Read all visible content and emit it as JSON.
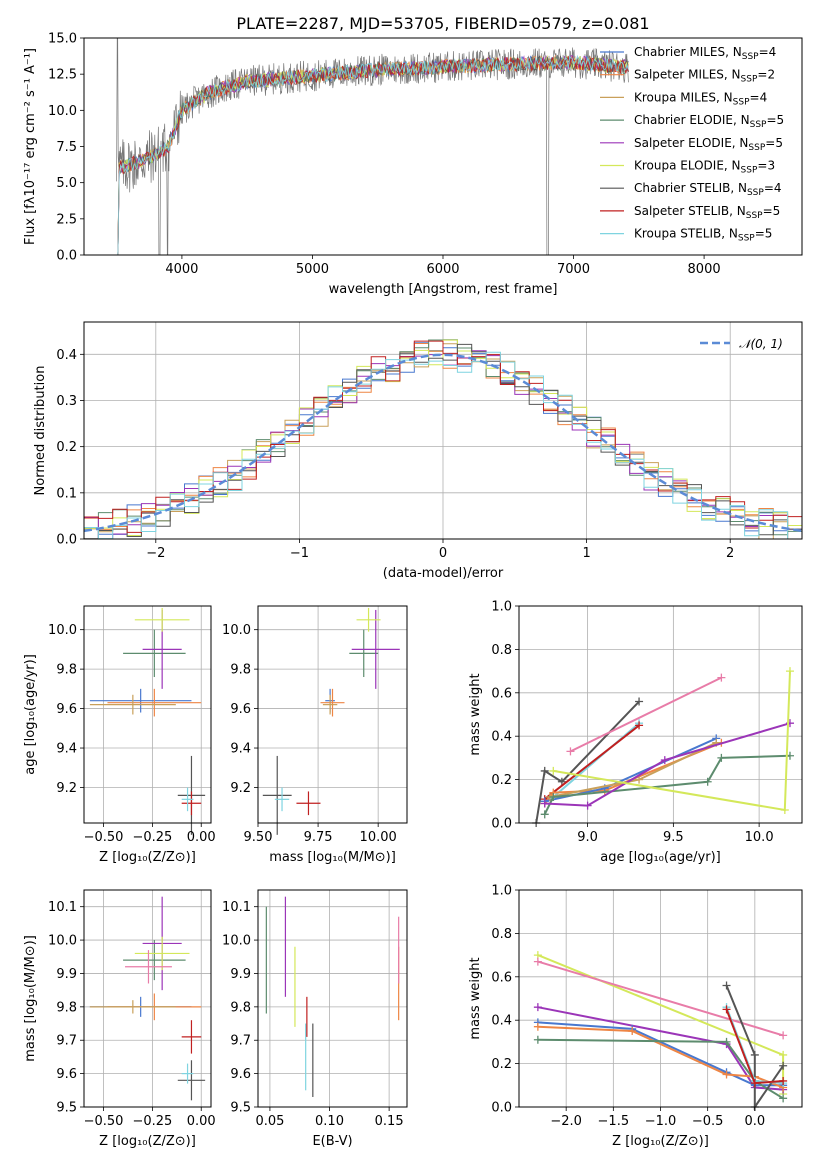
{
  "colors": {
    "Chabrier MILES": "#4878cf",
    "Salpeter MILES": "#ee8544",
    "Kroupa MILES": "#c9a05a",
    "Chabrier ELODIE": "#5d8c6e",
    "Salpeter ELODIE": "#9b35b8",
    "Kroupa ELODIE": "#d4e85a",
    "Chabrier STELIB": "#555555",
    "Salpeter STELIB": "#c02020",
    "Kroupa STELIB": "#7fd4e0",
    "gaussian": "#5b8bd6"
  },
  "chart_data": [
    {
      "id": "spectrum",
      "type": "line",
      "title": "PLATE=2287, MJD=53705, FIBERID=0579, z=0.081",
      "xlabel": "wavelength [Angstrom, rest frame]",
      "ylabel": "Flux [fλ10⁻¹⁷ erg cm⁻² s⁻¹ A⁻¹]",
      "xlim": [
        3250,
        8750
      ],
      "ylim": [
        0,
        15
      ],
      "xticks": [
        "4000",
        "5000",
        "6000",
        "7000",
        "8000"
      ],
      "yticks": [
        "0.0",
        "2.5",
        "5.0",
        "7.5",
        "10.0",
        "12.5",
        "15.0"
      ],
      "legend": [
        {
          "name": "Chabrier MILES",
          "nssp": "4"
        },
        {
          "name": "Salpeter MILES",
          "nssp": "2"
        },
        {
          "name": "Kroupa MILES",
          "nssp": "4"
        },
        {
          "name": "Chabrier ELODIE",
          "nssp": "5"
        },
        {
          "name": "Salpeter ELODIE",
          "nssp": "5"
        },
        {
          "name": "Kroupa ELODIE",
          "nssp": "3"
        },
        {
          "name": "Chabrier STELIB",
          "nssp": "4"
        },
        {
          "name": "Salpeter STELIB",
          "nssp": "5"
        },
        {
          "name": "Kroupa STELIB",
          "nssp": "5"
        }
      ],
      "continuum": {
        "x": [
          3500,
          3700,
          3900,
          4000,
          4200,
          4500,
          5000,
          5500,
          6000,
          6500,
          7000,
          7400
        ],
        "y": [
          6.0,
          6.5,
          7.5,
          10.0,
          11.2,
          12.0,
          12.4,
          12.8,
          13.0,
          13.2,
          13.3,
          13.0
        ]
      },
      "drops": [
        3500,
        3820,
        3890,
        6810,
        7420
      ]
    },
    {
      "id": "residuals",
      "type": "bar",
      "xlabel": "(data-model)/error",
      "ylabel": "Normed distribution",
      "xlim": [
        -2.5,
        2.5
      ],
      "ylim": [
        0,
        0.47
      ],
      "xticks": [
        "−2",
        "−1",
        "0",
        "1",
        "2"
      ],
      "yticks": [
        "0.0",
        "0.1",
        "0.2",
        "0.3",
        "0.4"
      ],
      "legend_label": "𝒩(0, 1)",
      "gaussian": {
        "mu": 0,
        "sigma": 1
      }
    },
    {
      "id": "age-Z",
      "type": "scatter",
      "xlabel": "Z [log₁₀(Z/Z⊙)]",
      "ylabel": "age  [log₁₀(age/yr)]",
      "xlim": [
        -0.6,
        0.05
      ],
      "ylim": [
        9.02,
        10.12
      ],
      "xticks": [
        "−0.50",
        "−0.25",
        "0.00"
      ],
      "xtick_values": [
        -0.5,
        -0.25,
        0
      ],
      "yticks": [
        "9.2",
        "9.4",
        "9.6",
        "9.8",
        "10.0"
      ],
      "ytick_values": [
        9.2,
        9.4,
        9.6,
        9.8,
        10.0
      ],
      "points": [
        {
          "s": "Chabrier MILES",
          "x": -0.31,
          "y": 9.64,
          "ex": 0.26,
          "ey": 0.06
        },
        {
          "s": "Salpeter MILES",
          "x": -0.24,
          "y": 9.63,
          "ex": 0.24,
          "ey": 0.07
        },
        {
          "s": "Kroupa MILES",
          "x": -0.35,
          "y": 9.62,
          "ex": 0.22,
          "ey": 0.05
        },
        {
          "s": "Chabrier ELODIE",
          "x": -0.24,
          "y": 9.88,
          "ex": 0.16,
          "ey": 0.12
        },
        {
          "s": "Salpeter ELODIE",
          "x": -0.2,
          "y": 9.9,
          "ex": 0.1,
          "ey": 0.2
        },
        {
          "s": "Kroupa ELODIE",
          "x": -0.2,
          "y": 10.05,
          "ex": 0.14,
          "ey": 0.06
        },
        {
          "s": "Chabrier STELIB",
          "x": -0.05,
          "y": 9.16,
          "ex": 0.07,
          "ey": 0.2
        },
        {
          "s": "Salpeter STELIB",
          "x": -0.05,
          "y": 9.12,
          "ex": 0.05,
          "ey": 0.06
        },
        {
          "s": "Kroupa STELIB",
          "x": -0.07,
          "y": 9.14,
          "ex": 0.03,
          "ey": 0.06
        }
      ]
    },
    {
      "id": "age-mass",
      "type": "scatter",
      "xlabel": "mass [log₁₀(M/M⊙)]",
      "ylabel": "",
      "xlim": [
        9.5,
        10.12
      ],
      "ylim": [
        9.02,
        10.12
      ],
      "xticks": [
        "9.50",
        "9.75",
        "10.00"
      ],
      "xtick_values": [
        9.5,
        9.75,
        10.0
      ],
      "yticks": [
        "9.2",
        "9.4",
        "9.6",
        "9.8",
        "10.0"
      ],
      "ytick_values": [
        9.2,
        9.4,
        9.6,
        9.8,
        10.0
      ],
      "points": [
        {
          "s": "Chabrier MILES",
          "x": 9.8,
          "y": 9.64,
          "ex": 0.02,
          "ey": 0.06
        },
        {
          "s": "Salpeter MILES",
          "x": 9.81,
          "y": 9.63,
          "ex": 0.05,
          "ey": 0.07
        },
        {
          "s": "Kroupa MILES",
          "x": 9.8,
          "y": 9.62,
          "ex": 0.03,
          "ey": 0.05
        },
        {
          "s": "Chabrier ELODIE",
          "x": 9.94,
          "y": 9.88,
          "ex": 0.06,
          "ey": 0.12
        },
        {
          "s": "Salpeter ELODIE",
          "x": 9.99,
          "y": 9.9,
          "ex": 0.1,
          "ey": 0.2
        },
        {
          "s": "Kroupa ELODIE",
          "x": 9.96,
          "y": 10.05,
          "ex": 0.05,
          "ey": 0.06
        },
        {
          "s": "Chabrier STELIB",
          "x": 9.58,
          "y": 9.16,
          "ex": 0.06,
          "ey": 0.2
        },
        {
          "s": "Salpeter STELIB",
          "x": 9.71,
          "y": 9.12,
          "ex": 0.05,
          "ey": 0.06
        },
        {
          "s": "Kroupa STELIB",
          "x": 9.6,
          "y": 9.14,
          "ex": 0.03,
          "ey": 0.06
        }
      ]
    },
    {
      "id": "weight-age",
      "type": "line",
      "xlabel": "age  [log₁₀(age/yr)]",
      "ylabel": "mass weight",
      "xlim": [
        8.6,
        10.25
      ],
      "ylim": [
        0,
        1
      ],
      "xticks": [
        "9.0",
        "9.5",
        "10.0"
      ],
      "xtick_values": [
        9.0,
        9.5,
        10.0
      ],
      "yticks": [
        "0.0",
        "0.2",
        "0.4",
        "0.6",
        "0.8",
        "1.0"
      ],
      "ytick_values": [
        0,
        0.2,
        0.4,
        0.6,
        0.8,
        1.0
      ],
      "series": [
        {
          "s": "Chabrier STELIB",
          "x": [
            8.7,
            8.75,
            8.85,
            9.3
          ],
          "y": [
            0.0,
            0.24,
            0.19,
            0.56
          ]
        },
        {
          "s": "Kroupa STELIB",
          "x": [
            8.75,
            8.8,
            9.3
          ],
          "y": [
            0.1,
            0.12,
            0.46
          ]
        },
        {
          "s": "Salpeter STELIB",
          "x": [
            8.75,
            9.3
          ],
          "y": [
            0.11,
            0.45
          ]
        },
        {
          "s": "Salpeter MILES",
          "x": [
            8.75,
            8.8,
            9.1,
            9.78
          ],
          "y": [
            0.09,
            0.14,
            0.15,
            0.37
          ]
        },
        {
          "s": "Chabrier MILES",
          "x": [
            8.75,
            9.1,
            9.75
          ],
          "y": [
            0.1,
            0.16,
            0.39
          ]
        },
        {
          "s": "Kroupa MILES",
          "x": [
            8.78,
            9.3,
            9.75
          ],
          "y": [
            0.12,
            0.2,
            0.37
          ]
        },
        {
          "s": "Chabrier ELODIE",
          "x": [
            8.75,
            8.8,
            9.7,
            9.78,
            10.18
          ],
          "y": [
            0.04,
            0.12,
            0.19,
            0.3,
            0.31
          ]
        },
        {
          "s": "Salpeter ELODIE",
          "x": [
            8.75,
            9.0,
            9.45,
            10.18
          ],
          "y": [
            0.09,
            0.08,
            0.29,
            0.46
          ]
        },
        {
          "s": "Kroupa ELODIE",
          "x": [
            8.8,
            10.15,
            10.18
          ],
          "y": [
            0.24,
            0.06,
            0.7
          ]
        },
        {
          "s": "pink",
          "x": [
            8.9,
            9.78
          ],
          "y": [
            0.33,
            0.67
          ]
        }
      ]
    },
    {
      "id": "mass-Z",
      "type": "scatter",
      "xlabel": "Z [log₁₀(Z/Z⊙)]",
      "ylabel": "mass [log₁₀(M/M⊙)]",
      "xlim": [
        -0.6,
        0.05
      ],
      "ylim": [
        9.5,
        10.15
      ],
      "xticks": [
        "−0.50",
        "−0.25",
        "0.00"
      ],
      "xtick_values": [
        -0.5,
        -0.25,
        0
      ],
      "yticks": [
        "9.5",
        "9.6",
        "9.7",
        "9.8",
        "9.9",
        "10.0",
        "10.1"
      ],
      "ytick_values": [
        9.5,
        9.6,
        9.7,
        9.8,
        9.9,
        10.0,
        10.1
      ],
      "points": [
        {
          "s": "Chabrier MILES",
          "x": -0.31,
          "y": 9.8,
          "ex": 0.26,
          "ey": 0.03
        },
        {
          "s": "Salpeter MILES",
          "x": -0.24,
          "y": 9.8,
          "ex": 0.24,
          "ey": 0.04
        },
        {
          "s": "Kroupa MILES",
          "x": -0.35,
          "y": 9.8,
          "ex": 0.22,
          "ey": 0.02
        },
        {
          "s": "Chabrier ELODIE",
          "x": -0.24,
          "y": 9.94,
          "ex": 0.16,
          "ey": 0.06
        },
        {
          "s": "Salpeter ELODIE",
          "x": -0.2,
          "y": 9.99,
          "ex": 0.1,
          "ey": 0.14
        },
        {
          "s": "Kroupa ELODIE",
          "x": -0.2,
          "y": 9.96,
          "ex": 0.14,
          "ey": 0.05
        },
        {
          "s": "Chabrier STELIB",
          "x": -0.05,
          "y": 9.58,
          "ex": 0.07,
          "ey": 0.06
        },
        {
          "s": "Salpeter STELIB",
          "x": -0.05,
          "y": 9.71,
          "ex": 0.05,
          "ey": 0.05
        },
        {
          "s": "Kroupa STELIB",
          "x": -0.07,
          "y": 9.6,
          "ex": 0.03,
          "ey": 0.03
        },
        {
          "s": "pink",
          "x": -0.27,
          "y": 9.92,
          "ex": 0.12,
          "ey": 0.05
        }
      ]
    },
    {
      "id": "mass-ebv",
      "type": "scatter",
      "xlabel": "E(B-V)",
      "ylabel": "",
      "xlim": [
        0.04,
        0.165
      ],
      "ylim": [
        9.5,
        10.15
      ],
      "xticks": [
        "0.05",
        "0.10",
        "0.15"
      ],
      "xtick_values": [
        0.05,
        0.1,
        0.15
      ],
      "yticks": [
        "9.5",
        "9.6",
        "9.7",
        "9.8",
        "9.9",
        "10.0",
        "10.1"
      ],
      "ytick_values": [
        9.5,
        9.6,
        9.7,
        9.8,
        9.9,
        10.0,
        10.1
      ],
      "points": [
        {
          "s": "Chabrier ELODIE",
          "x": 0.047,
          "y": 9.94,
          "ex": 0,
          "ey": 0.16
        },
        {
          "s": "Salpeter ELODIE",
          "x": 0.063,
          "y": 9.98,
          "ex": 0,
          "ey": 0.15
        },
        {
          "s": "Kroupa ELODIE",
          "x": 0.071,
          "y": 9.86,
          "ex": 0,
          "ey": 0.12
        },
        {
          "s": "Kroupa STELIB",
          "x": 0.08,
          "y": 9.65,
          "ex": 0,
          "ey": 0.1
        },
        {
          "s": "Salpeter STELIB",
          "x": 0.081,
          "y": 9.77,
          "ex": 0,
          "ey": 0.06
        },
        {
          "s": "Chabrier STELIB",
          "x": 0.086,
          "y": 9.64,
          "ex": 0,
          "ey": 0.11
        },
        {
          "s": "Salpeter MILES",
          "x": 0.158,
          "y": 9.87,
          "ex": 0,
          "ey": 0.11
        },
        {
          "s": "pink",
          "x": 0.158,
          "y": 9.97,
          "ex": 0,
          "ey": 0.1
        }
      ]
    },
    {
      "id": "weight-Z",
      "type": "line",
      "xlabel": "Z [log₁₀(Z/Z⊙)]",
      "ylabel": "mass weight",
      "xlim": [
        -2.5,
        0.5
      ],
      "ylim": [
        0,
        1
      ],
      "xticks": [
        "−2.0",
        "−1.5",
        "−1.0",
        "−0.5",
        "0.0"
      ],
      "xtick_values": [
        -2.0,
        -1.5,
        -1.0,
        -0.5,
        0.0
      ],
      "yticks": [
        "0.0",
        "0.2",
        "0.4",
        "0.6",
        "0.8",
        "1.0"
      ],
      "ytick_values": [
        0,
        0.2,
        0.4,
        0.6,
        0.8,
        1.0
      ],
      "series": [
        {
          "s": "Kroupa ELODIE",
          "x": [
            -2.3,
            0.3,
            0.3
          ],
          "y": [
            0.7,
            0.24,
            0.06
          ]
        },
        {
          "s": "pink",
          "x": [
            -2.3,
            0.3
          ],
          "y": [
            0.67,
            0.33
          ]
        },
        {
          "s": "Salpeter ELODIE",
          "x": [
            -2.3,
            -0.3,
            0.0,
            0.3
          ],
          "y": [
            0.46,
            0.29,
            0.09,
            0.08
          ]
        },
        {
          "s": "Chabrier MILES",
          "x": [
            -2.3,
            -1.3,
            -0.3,
            0.0,
            0.3
          ],
          "y": [
            0.39,
            0.36,
            0.16,
            0.1,
            0.1
          ]
        },
        {
          "s": "Salpeter MILES",
          "x": [
            -2.3,
            -1.3,
            -0.3,
            0.0,
            0.3
          ],
          "y": [
            0.37,
            0.35,
            0.15,
            0.14,
            0.09
          ]
        },
        {
          "s": "Chabrier ELODIE",
          "x": [
            -2.3,
            -0.3,
            0.0,
            0.3
          ],
          "y": [
            0.31,
            0.3,
            0.12,
            0.04
          ]
        },
        {
          "s": "Chabrier STELIB",
          "x": [
            -0.3,
            0.0,
            0.0,
            0.3
          ],
          "y": [
            0.56,
            0.24,
            0.0,
            0.19
          ]
        },
        {
          "s": "Kroupa STELIB",
          "x": [
            -0.3,
            0.0,
            0.3
          ],
          "y": [
            0.46,
            0.12,
            0.11
          ]
        },
        {
          "s": "Salpeter STELIB",
          "x": [
            -0.3,
            0.0,
            0.3
          ],
          "y": [
            0.45,
            0.11,
            0.12
          ]
        }
      ]
    }
  ]
}
